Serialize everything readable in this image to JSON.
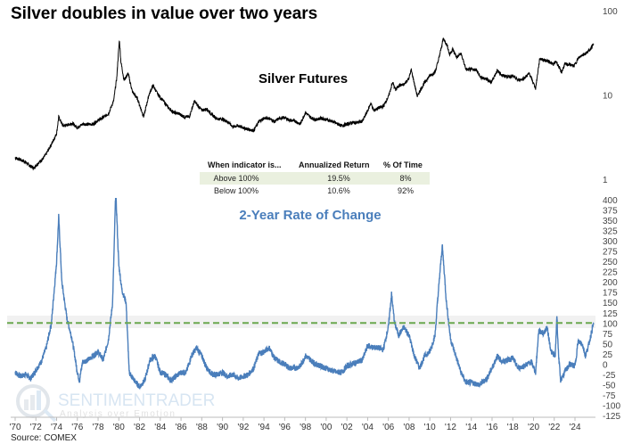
{
  "chart_data": [
    {
      "type": "line",
      "title": "Silver doubles in value over two years",
      "panel_label": "Silver Futures",
      "yscale": "log",
      "ylim": [
        1,
        100
      ],
      "yticks": [
        "1",
        "10",
        "100"
      ],
      "color": "#000000",
      "series": [
        {
          "name": "Silver Futures",
          "points": [
            [
              1970,
              1.8
            ],
            [
              1970.5,
              1.7
            ],
            [
              1971,
              1.6
            ],
            [
              1971.4,
              1.45
            ],
            [
              1971.8,
              1.35
            ],
            [
              1972.2,
              1.55
            ],
            [
              1972.6,
              1.7
            ],
            [
              1973,
              2.0
            ],
            [
              1973.5,
              2.6
            ],
            [
              1974,
              3.5
            ],
            [
              1974.2,
              5.5
            ],
            [
              1974.6,
              4.3
            ],
            [
              1975,
              4.4
            ],
            [
              1975.5,
              4.6
            ],
            [
              1976,
              4.1
            ],
            [
              1976.5,
              4.5
            ],
            [
              1977,
              4.5
            ],
            [
              1977.5,
              4.5
            ],
            [
              1978,
              5.0
            ],
            [
              1978.5,
              5.4
            ],
            [
              1979,
              6.0
            ],
            [
              1979.5,
              8.5
            ],
            [
              1979.8,
              16
            ],
            [
              1980.05,
              45
            ],
            [
              1980.2,
              25
            ],
            [
              1980.5,
              15
            ],
            [
              1980.9,
              18
            ],
            [
              1981.3,
              11
            ],
            [
              1981.8,
              9
            ],
            [
              1982.4,
              5.5
            ],
            [
              1982.9,
              10
            ],
            [
              1983.3,
              13
            ],
            [
              1983.8,
              10
            ],
            [
              1984.3,
              8.5
            ],
            [
              1984.8,
              7
            ],
            [
              1985.3,
              6.2
            ],
            [
              1985.8,
              6
            ],
            [
              1986.3,
              5.5
            ],
            [
              1986.8,
              5.5
            ],
            [
              1987.3,
              8.5
            ],
            [
              1987.6,
              7.5
            ],
            [
              1988,
              6.6
            ],
            [
              1988.5,
              6.8
            ],
            [
              1989,
              5.8
            ],
            [
              1989.5,
              5.2
            ],
            [
              1990,
              5.2
            ],
            [
              1990.5,
              4.8
            ],
            [
              1991,
              4.2
            ],
            [
              1991.5,
              4.3
            ],
            [
              1992,
              4.1
            ],
            [
              1992.5,
              3.9
            ],
            [
              1993,
              3.8
            ],
            [
              1993.5,
              4.8
            ],
            [
              1994,
              5.3
            ],
            [
              1994.5,
              5.3
            ],
            [
              1995,
              4.8
            ],
            [
              1995.5,
              5.3
            ],
            [
              1996,
              5.4
            ],
            [
              1996.5,
              5.0
            ],
            [
              1997,
              4.9
            ],
            [
              1997.5,
              4.5
            ],
            [
              1998,
              6.2
            ],
            [
              1998.5,
              5.4
            ],
            [
              1999,
              5.1
            ],
            [
              1999.5,
              5.3
            ],
            [
              2000,
              5.1
            ],
            [
              2000.5,
              4.9
            ],
            [
              2001,
              4.6
            ],
            [
              2001.5,
              4.3
            ],
            [
              2002,
              4.5
            ],
            [
              2002.5,
              4.7
            ],
            [
              2003,
              4.7
            ],
            [
              2003.5,
              4.9
            ],
            [
              2004,
              6.5
            ],
            [
              2004.3,
              8
            ],
            [
              2004.6,
              6.5
            ],
            [
              2005,
              7
            ],
            [
              2005.5,
              7.3
            ],
            [
              2006,
              9.5
            ],
            [
              2006.4,
              14
            ],
            [
              2006.7,
              11.5
            ],
            [
              2007,
              13
            ],
            [
              2007.5,
              13.2
            ],
            [
              2008,
              16
            ],
            [
              2008.2,
              20
            ],
            [
              2008.8,
              9.5
            ],
            [
              2009,
              11
            ],
            [
              2009.5,
              14
            ],
            [
              2010,
              17
            ],
            [
              2010.5,
              18.5
            ],
            [
              2010.9,
              28
            ],
            [
              2011.3,
              47
            ],
            [
              2011.7,
              38
            ],
            [
              2011.9,
              30
            ],
            [
              2012.2,
              35
            ],
            [
              2012.6,
              28
            ],
            [
              2013,
              31
            ],
            [
              2013.5,
              20
            ],
            [
              2014,
              20
            ],
            [
              2014.5,
              20
            ],
            [
              2014.9,
              16
            ],
            [
              2015.5,
              15.5
            ],
            [
              2015.9,
              14
            ],
            [
              2016.5,
              19.5
            ],
            [
              2017,
              17
            ],
            [
              2017.5,
              16.5
            ],
            [
              2018,
              16.8
            ],
            [
              2018.5,
              15
            ],
            [
              2019,
              15.5
            ],
            [
              2019.6,
              18
            ],
            [
              2020.2,
              12
            ],
            [
              2020.6,
              27
            ],
            [
              2021,
              26
            ],
            [
              2021.5,
              25
            ],
            [
              2021.9,
              23
            ],
            [
              2022.2,
              25
            ],
            [
              2022.7,
              18.5
            ],
            [
              2023,
              23
            ],
            [
              2023.5,
              23
            ],
            [
              2023.9,
              22
            ],
            [
              2024.3,
              27
            ],
            [
              2024.7,
              30
            ],
            [
              2025,
              31
            ],
            [
              2025.4,
              34
            ],
            [
              2025.8,
              40
            ]
          ]
        }
      ]
    },
    {
      "type": "line",
      "title": "2-Year Rate of Change",
      "ylim": [
        -125,
        400
      ],
      "yticks": [
        "-125",
        "-100",
        "-75",
        "-50",
        "-25",
        "0",
        "25",
        "50",
        "75",
        "100",
        "125",
        "150",
        "175",
        "200",
        "225",
        "250",
        "275",
        "300",
        "325",
        "350",
        "375",
        "400"
      ],
      "threshold": 100,
      "threshold_color": "#6aa84f",
      "color": "#4a7ebb",
      "series": [
        {
          "name": "2-Year Rate of Change",
          "points": [
            [
              1970,
              -20
            ],
            [
              1970.5,
              -30
            ],
            [
              1971,
              -25
            ],
            [
              1971.5,
              -35
            ],
            [
              1972,
              -15
            ],
            [
              1972.5,
              5
            ],
            [
              1973,
              40
            ],
            [
              1973.5,
              100
            ],
            [
              1974,
              250
            ],
            [
              1974.2,
              360
            ],
            [
              1974.5,
              200
            ],
            [
              1975,
              110
            ],
            [
              1975.5,
              60
            ],
            [
              1976,
              -20
            ],
            [
              1976.2,
              -40
            ],
            [
              1976.5,
              5
            ],
            [
              1977,
              10
            ],
            [
              1977.5,
              20
            ],
            [
              1978,
              30
            ],
            [
              1978.5,
              10
            ],
            [
              1979,
              60
            ],
            [
              1979.4,
              150
            ],
            [
              1979.7,
              420
            ],
            [
              1980,
              240
            ],
            [
              1980.3,
              180
            ],
            [
              1980.7,
              150
            ],
            [
              1981,
              -20
            ],
            [
              1981.5,
              -40
            ],
            [
              1982,
              -55
            ],
            [
              1982.5,
              -40
            ],
            [
              1983,
              10
            ],
            [
              1983.5,
              20
            ],
            [
              1984,
              -20
            ],
            [
              1984.5,
              -25
            ],
            [
              1985,
              -40
            ],
            [
              1985.5,
              -30
            ],
            [
              1986,
              -20
            ],
            [
              1986.5,
              -20
            ],
            [
              1987,
              20
            ],
            [
              1987.5,
              40
            ],
            [
              1988,
              20
            ],
            [
              1988.5,
              -10
            ],
            [
              1989,
              -25
            ],
            [
              1989.5,
              -25
            ],
            [
              1990,
              -20
            ],
            [
              1990.5,
              -30
            ],
            [
              1991,
              -25
            ],
            [
              1991.5,
              -35
            ],
            [
              1992,
              -30
            ],
            [
              1992.5,
              -25
            ],
            [
              1993,
              -10
            ],
            [
              1993.5,
              25
            ],
            [
              1994,
              30
            ],
            [
              1994.5,
              40
            ],
            [
              1995,
              15
            ],
            [
              1995.5,
              5
            ],
            [
              1996,
              0
            ],
            [
              1996.5,
              -10
            ],
            [
              1997,
              -10
            ],
            [
              1997.5,
              -5
            ],
            [
              1998,
              20
            ],
            [
              1998.5,
              10
            ],
            [
              1999,
              0
            ],
            [
              1999.5,
              -5
            ],
            [
              2000,
              -10
            ],
            [
              2000.5,
              -15
            ],
            [
              2001,
              -20
            ],
            [
              2001.5,
              -20
            ],
            [
              2002,
              -5
            ],
            [
              2002.5,
              0
            ],
            [
              2003,
              5
            ],
            [
              2003.5,
              10
            ],
            [
              2004,
              45
            ],
            [
              2004.5,
              40
            ],
            [
              2005,
              40
            ],
            [
              2005.5,
              35
            ],
            [
              2006,
              90
            ],
            [
              2006.3,
              170
            ],
            [
              2006.6,
              100
            ],
            [
              2007,
              70
            ],
            [
              2007.5,
              90
            ],
            [
              2008,
              70
            ],
            [
              2008.5,
              20
            ],
            [
              2009,
              -10
            ],
            [
              2009.5,
              20
            ],
            [
              2010,
              30
            ],
            [
              2010.5,
              70
            ],
            [
              2010.8,
              170
            ],
            [
              2011.2,
              290
            ],
            [
              2011.6,
              150
            ],
            [
              2012,
              60
            ],
            [
              2012.5,
              20
            ],
            [
              2013,
              -20
            ],
            [
              2013.5,
              -45
            ],
            [
              2014,
              -45
            ],
            [
              2014.8,
              -50
            ],
            [
              2015.5,
              -35
            ],
            [
              2016,
              -10
            ],
            [
              2016.5,
              20
            ],
            [
              2017,
              5
            ],
            [
              2018,
              15
            ],
            [
              2018.5,
              -10
            ],
            [
              2019,
              -5
            ],
            [
              2019.8,
              5
            ],
            [
              2020.2,
              -20
            ],
            [
              2020.5,
              80
            ],
            [
              2021,
              75
            ],
            [
              2021.3,
              90
            ],
            [
              2021.7,
              30
            ],
            [
              2022.1,
              20
            ],
            [
              2022.25,
              120
            ],
            [
              2022.4,
              30
            ],
            [
              2022.6,
              -40
            ],
            [
              2023,
              -20
            ],
            [
              2023.5,
              0
            ],
            [
              2024,
              -5
            ],
            [
              2024.3,
              55
            ],
            [
              2024.7,
              50
            ],
            [
              2025,
              20
            ],
            [
              2025.3,
              45
            ],
            [
              2025.8,
              100
            ]
          ]
        }
      ]
    }
  ],
  "xaxis": {
    "ticks": [
      "'70",
      "'72",
      "'74",
      "'76",
      "'78",
      "'80",
      "'82",
      "'84",
      "'86",
      "'88",
      "'90",
      "'92",
      "'94",
      "'96",
      "'98",
      "'00",
      "'02",
      "'04",
      "'06",
      "'08",
      "'10",
      "'12",
      "'14",
      "'16",
      "'18",
      "'20",
      "'22",
      "'24"
    ],
    "range": [
      1970,
      2026
    ]
  },
  "table": {
    "headers": [
      "When indicator is...",
      "Annualized Return",
      "% Of Time"
    ],
    "rows": [
      [
        "Above 100%",
        "19.5%",
        "8%"
      ],
      [
        "Below 100%",
        "10.6%",
        "92%"
      ]
    ],
    "highlight_color": "#eaf0df"
  },
  "watermark": {
    "brand": "SENTIMENTRADER",
    "tagline": "Analysis over Emotion"
  },
  "source": "Source: COMEX"
}
